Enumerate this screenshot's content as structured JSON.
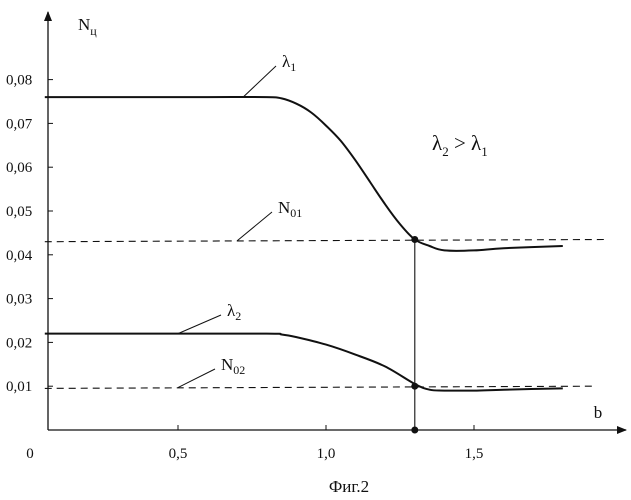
{
  "chart_data": {
    "type": "line",
    "title": "",
    "caption": "Фиг.2",
    "xlabel": "b",
    "ylabel": {
      "base": "N",
      "sub": "ц"
    },
    "xlim": [
      0,
      1.9
    ],
    "ylim": [
      0,
      0.085
    ],
    "origin_label": "0",
    "x_ticks": [
      {
        "value": 0.5,
        "label": "0,5"
      },
      {
        "value": 1.0,
        "label": "1,0"
      },
      {
        "value": 1.5,
        "label": "1,5"
      }
    ],
    "y_ticks": [
      {
        "value": 0.01,
        "label": "0,01"
      },
      {
        "value": 0.02,
        "label": "0,02"
      },
      {
        "value": 0.03,
        "label": "0,03"
      },
      {
        "value": 0.04,
        "label": "0,04"
      },
      {
        "value": 0.05,
        "label": "0,05"
      },
      {
        "value": 0.06,
        "label": "0,06"
      },
      {
        "value": 0.07,
        "label": "0,07"
      },
      {
        "value": 0.08,
        "label": "0,08"
      }
    ],
    "grid": false,
    "series": [
      {
        "name": {
          "base": "λ",
          "sub": "1"
        },
        "style": "solid",
        "x": [
          0.05,
          0.3,
          0.6,
          0.8,
          0.85,
          0.9,
          0.95,
          1.0,
          1.05,
          1.1,
          1.15,
          1.2,
          1.25,
          1.3,
          1.35,
          1.4,
          1.5,
          1.6,
          1.8
        ],
        "y": [
          0.076,
          0.076,
          0.076,
          0.076,
          0.0757,
          0.0745,
          0.0725,
          0.0695,
          0.066,
          0.0615,
          0.0565,
          0.0515,
          0.047,
          0.0435,
          0.042,
          0.041,
          0.041,
          0.0415,
          0.042
        ]
      },
      {
        "name": {
          "base": "λ",
          "sub": "2"
        },
        "style": "solid",
        "x": [
          0.05,
          0.4,
          0.8,
          0.85,
          0.9,
          1.0,
          1.1,
          1.2,
          1.3,
          1.35,
          1.4,
          1.5,
          1.6,
          1.8
        ],
        "y": [
          0.022,
          0.022,
          0.022,
          0.0218,
          0.0212,
          0.0195,
          0.0172,
          0.0145,
          0.0105,
          0.0092,
          0.009,
          0.009,
          0.0092,
          0.0095
        ]
      },
      {
        "name": {
          "base": "N",
          "sub": "01"
        },
        "style": "dashed",
        "x": [
          0.05,
          1.95
        ],
        "y": [
          0.043,
          0.0435
        ]
      },
      {
        "name": {
          "base": "N",
          "sub": "02"
        },
        "style": "dashed",
        "x": [
          0.05,
          1.9
        ],
        "y": [
          0.0095,
          0.01
        ]
      }
    ],
    "marker_x": 1.3,
    "marker_points": [
      {
        "x": 1.3,
        "y": 0.0435
      },
      {
        "x": 1.3,
        "y": 0.01
      },
      {
        "x": 1.3,
        "y": 0.0
      }
    ],
    "annotation": {
      "left": {
        "base": "λ",
        "sub": "2"
      },
      "op": " > ",
      "right": {
        "base": "λ",
        "sub": "1"
      }
    }
  }
}
